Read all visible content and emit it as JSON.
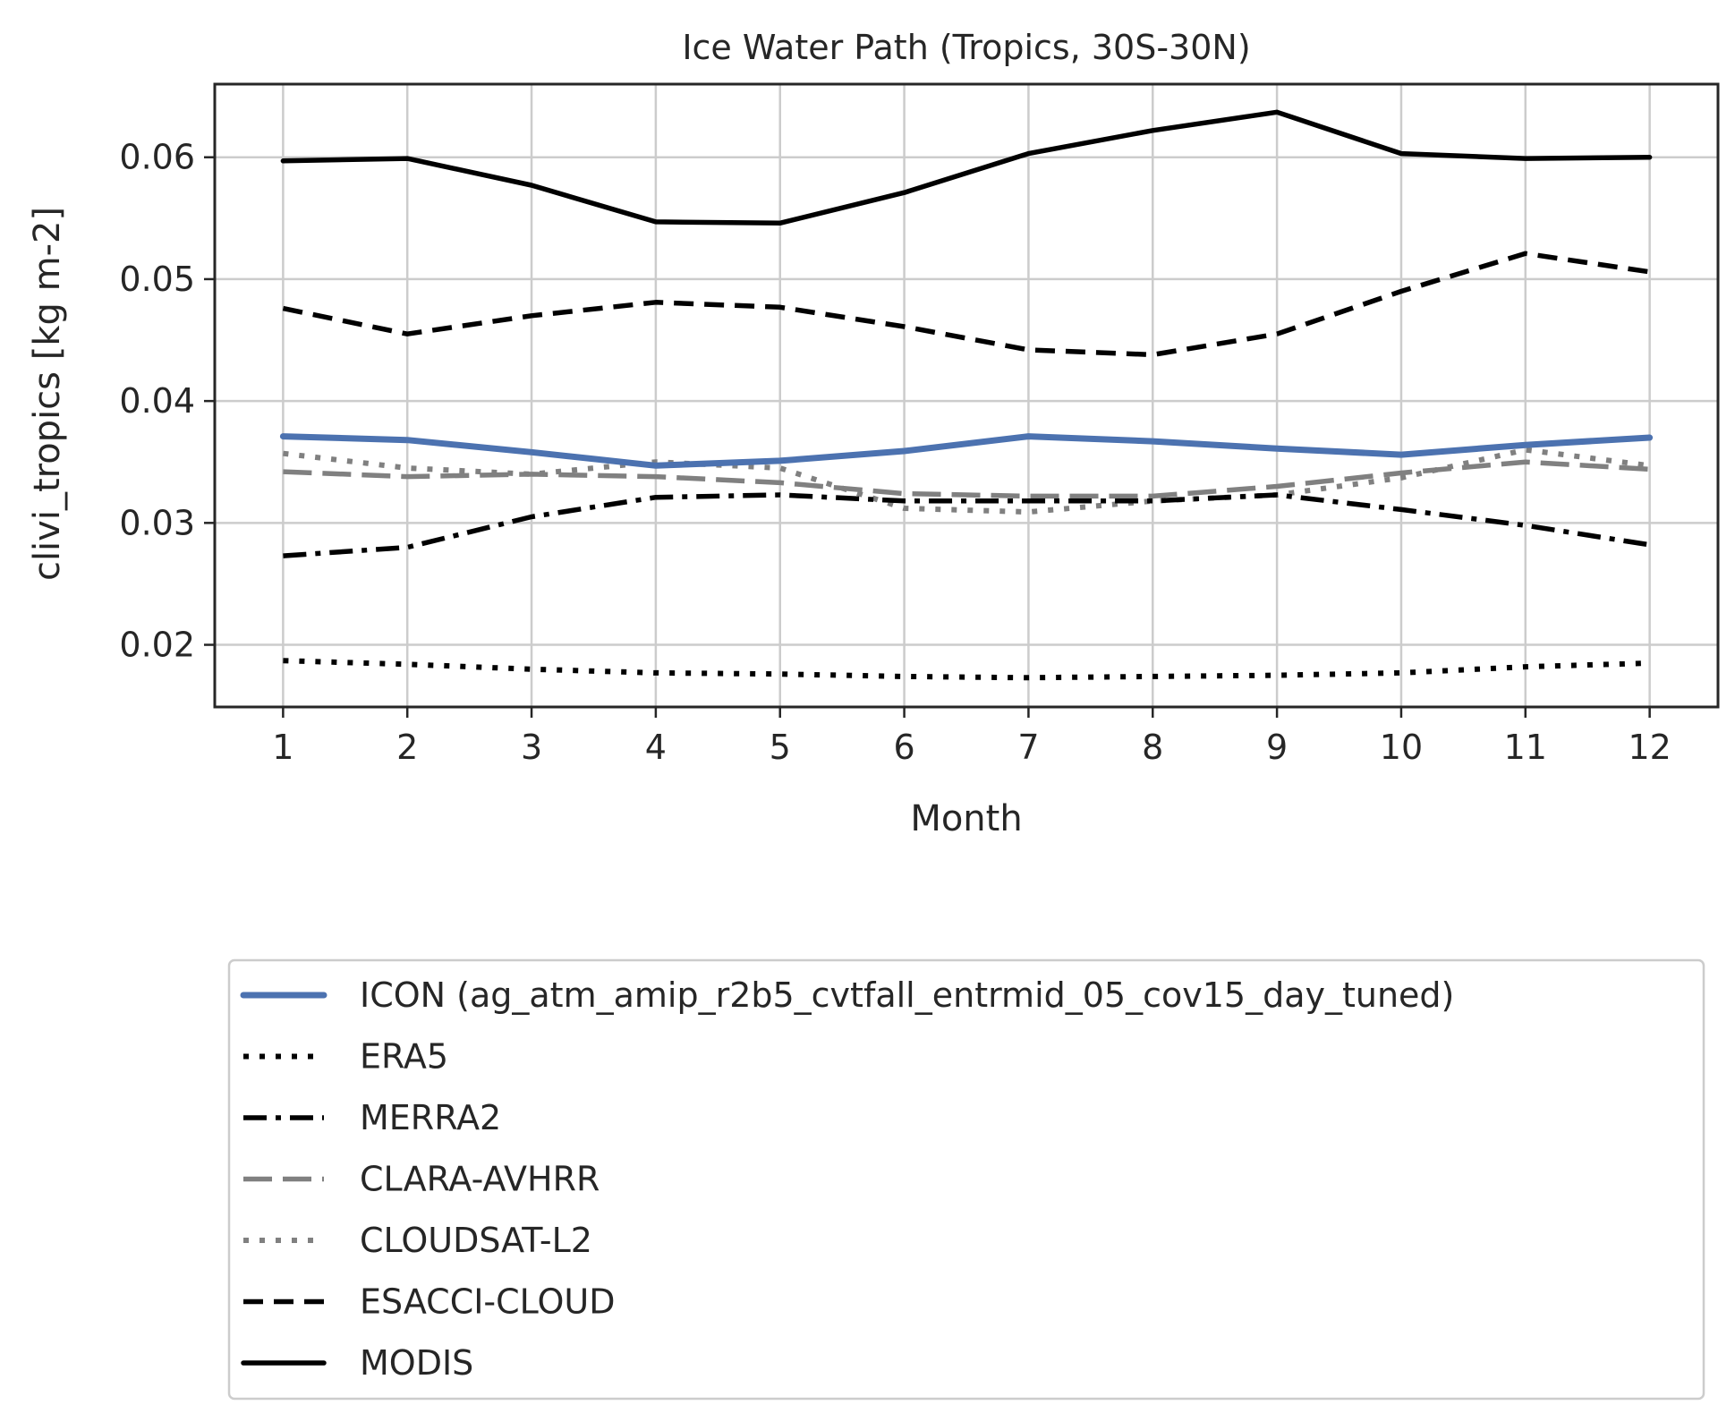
{
  "chart_data": {
    "type": "line",
    "title": "Ice Water Path (Tropics, 30S-30N)",
    "xlabel": "Month",
    "ylabel": "clivi_tropics [kg m-2]",
    "x": [
      1,
      2,
      3,
      4,
      5,
      6,
      7,
      8,
      9,
      10,
      11,
      12
    ],
    "xlim": [
      0.45,
      12.55
    ],
    "ylim": [
      0.0149,
      0.066
    ],
    "yticks": [
      "0.02",
      "0.03",
      "0.04",
      "0.05",
      "0.06"
    ],
    "xticks": [
      "1",
      "2",
      "3",
      "4",
      "5",
      "6",
      "7",
      "8",
      "9",
      "10",
      "11",
      "12"
    ],
    "grid": true,
    "legend_position": "below",
    "series": [
      {
        "name": "ICON (ag_atm_amip_r2b5_cvtfall_entrmid_05_cov15_day_tuned)",
        "color": "#4c72b0",
        "dash": "solid-thick",
        "values": [
          0.0371,
          0.0368,
          0.0358,
          0.0347,
          0.0351,
          0.0359,
          0.0371,
          0.0367,
          0.0361,
          0.0356,
          0.0364,
          0.037
        ]
      },
      {
        "name": "ERA5",
        "color": "#000000",
        "dash": "dotted",
        "values": [
          0.0187,
          0.0184,
          0.018,
          0.0177,
          0.0176,
          0.0174,
          0.0173,
          0.0174,
          0.0175,
          0.0177,
          0.0182,
          0.0185
        ]
      },
      {
        "name": "MERRA2",
        "color": "#000000",
        "dash": "dashdot",
        "values": [
          0.0273,
          0.028,
          0.0305,
          0.0321,
          0.0323,
          0.0318,
          0.0318,
          0.0318,
          0.0323,
          0.0311,
          0.0298,
          0.0282
        ]
      },
      {
        "name": "CLARA-AVHRR",
        "color": "#808080",
        "dash": "longdash",
        "values": [
          0.0342,
          0.0338,
          0.034,
          0.0338,
          0.0333,
          0.0324,
          0.0322,
          0.0322,
          0.033,
          0.0341,
          0.035,
          0.0344
        ]
      },
      {
        "name": "CLOUDSAT-L2",
        "color": "#808080",
        "dash": "dotted",
        "values": [
          0.0357,
          0.0345,
          0.034,
          0.035,
          0.0345,
          0.0312,
          0.0309,
          0.0318,
          0.0323,
          0.0337,
          0.036,
          0.0347
        ]
      },
      {
        "name": "ESACCI-CLOUD",
        "color": "#000000",
        "dash": "dashed",
        "values": [
          0.0476,
          0.0455,
          0.047,
          0.0481,
          0.0477,
          0.0461,
          0.0442,
          0.0438,
          0.0455,
          0.049,
          0.0521,
          0.0506
        ]
      },
      {
        "name": "MODIS",
        "color": "#000000",
        "dash": "solid",
        "values": [
          0.0597,
          0.0599,
          0.0577,
          0.0547,
          0.0546,
          0.0571,
          0.0603,
          0.0622,
          0.0637,
          0.0603,
          0.0599,
          0.06
        ]
      }
    ]
  }
}
